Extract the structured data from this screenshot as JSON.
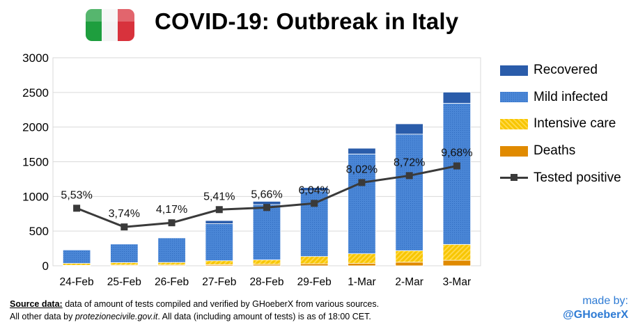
{
  "header": {
    "title": "COVID-19: Outbreak in Italy",
    "flag_colors": [
      "#1e9e3e",
      "#f4f4f4",
      "#d8323c"
    ]
  },
  "legend": {
    "items": [
      {
        "label": "Recovered",
        "color": "#2a5caa"
      },
      {
        "label": "Mild infected",
        "color": "#4a86d6"
      },
      {
        "label": "Intensive care",
        "color": "#f5c000"
      },
      {
        "label": "Deaths",
        "color": "#e08a00"
      },
      {
        "label": "Tested positive",
        "color": "#3a3a3a"
      }
    ]
  },
  "chart_data": {
    "type": "bar",
    "stacked": true,
    "title": "COVID-19: Outbreak in Italy",
    "categories": [
      "24-Feb",
      "25-Feb",
      "26-Feb",
      "27-Feb",
      "28-Feb",
      "29-Feb",
      "1-Mar",
      "2-Mar",
      "3-Mar"
    ],
    "ylim": [
      0,
      3000
    ],
    "yticks": [
      0,
      500,
      1000,
      1500,
      2000,
      2500,
      3000
    ],
    "grid": true,
    "series": [
      {
        "name": "Deaths",
        "values": [
          7,
          11,
          12,
          17,
          21,
          29,
          34,
          52,
          79
        ],
        "color": "#e08a00"
      },
      {
        "name": "Intensive care",
        "values": [
          27,
          35,
          36,
          56,
          64,
          105,
          140,
          166,
          229
        ],
        "color": "#f5c000"
      },
      {
        "name": "Mild infected",
        "values": [
          195,
          268,
          355,
          534,
          798,
          944,
          1438,
          1680,
          2036
        ],
        "color": "#4a86d6"
      },
      {
        "name": "Recovered",
        "values": [
          1,
          1,
          3,
          45,
          46,
          50,
          83,
          149,
          160
        ],
        "color": "#2a5caa"
      }
    ],
    "line": {
      "name": "Tested positive",
      "values": [
        830,
        560,
        620,
        810,
        840,
        900,
        1200,
        1300,
        1440
      ],
      "labels": [
        "5,53%",
        "3,74%",
        "4,17%",
        "5,41%",
        "5,66%",
        "6,04%",
        "8,02%",
        "8,72%",
        "9,68%"
      ],
      "color": "#3a3a3a"
    }
  },
  "footer": {
    "source_label": "Source data:",
    "line1": " data of amount of tests compiled and verified by GHoeberX from various sources.",
    "line2_prefix": "All other data  by ",
    "line2_site": "protezionecivile.gov.it",
    "line2_suffix": ".  All data (including amount of tests) is as of 18:00  CET."
  },
  "credit": {
    "made_by": "made by:",
    "handle": "@GHoeberX"
  }
}
